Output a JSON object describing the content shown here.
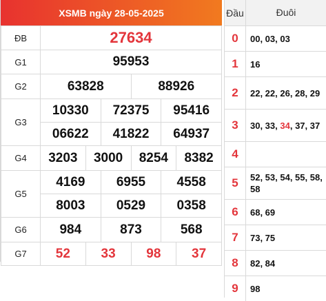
{
  "header": {
    "title": "XSMB ngày 28-05-2025"
  },
  "results": {
    "db": {
      "label": "ĐB",
      "numbers": [
        "27634"
      ]
    },
    "g1": {
      "label": "G1",
      "numbers": [
        "95953"
      ]
    },
    "g2": {
      "label": "G2",
      "numbers": [
        "63828",
        "88926"
      ]
    },
    "g3": {
      "label": "G3",
      "numbers": [
        "10330",
        "72375",
        "95416",
        "06622",
        "41822",
        "64937"
      ]
    },
    "g4": {
      "label": "G4",
      "numbers": [
        "3203",
        "3000",
        "8254",
        "8382"
      ]
    },
    "g5": {
      "label": "G5",
      "numbers": [
        "4169",
        "6955",
        "4558",
        "8003",
        "0529",
        "0358"
      ]
    },
    "g6": {
      "label": "G6",
      "numbers": [
        "984",
        "873",
        "568"
      ]
    },
    "g7": {
      "label": "G7",
      "numbers": [
        "52",
        "33",
        "98",
        "37"
      ]
    }
  },
  "loto": {
    "head_label": "Đầu",
    "tail_label": "Đuôi",
    "rows": [
      {
        "dau": "0",
        "duoi_a": "00, 03, 03",
        "duoi_hl": "",
        "duoi_b": ""
      },
      {
        "dau": "1",
        "duoi_a": "16",
        "duoi_hl": "",
        "duoi_b": ""
      },
      {
        "dau": "2",
        "duoi_a": "22, 22, 26, 28, 29",
        "duoi_hl": "",
        "duoi_b": ""
      },
      {
        "dau": "3",
        "duoi_a": "30, 33, ",
        "duoi_hl": "34",
        "duoi_b": ", 37, 37"
      },
      {
        "dau": "4",
        "duoi_a": "",
        "duoi_hl": "",
        "duoi_b": ""
      },
      {
        "dau": "5",
        "duoi_a": "52, 53, 54, 55, 58, 58",
        "duoi_hl": "",
        "duoi_b": ""
      },
      {
        "dau": "6",
        "duoi_a": "68, 69",
        "duoi_hl": "",
        "duoi_b": ""
      },
      {
        "dau": "7",
        "duoi_a": "73, 75",
        "duoi_hl": "",
        "duoi_b": ""
      },
      {
        "dau": "8",
        "duoi_a": "82, 84",
        "duoi_hl": "",
        "duoi_b": ""
      },
      {
        "dau": "9",
        "duoi_a": "98",
        "duoi_hl": "",
        "duoi_b": ""
      }
    ]
  }
}
